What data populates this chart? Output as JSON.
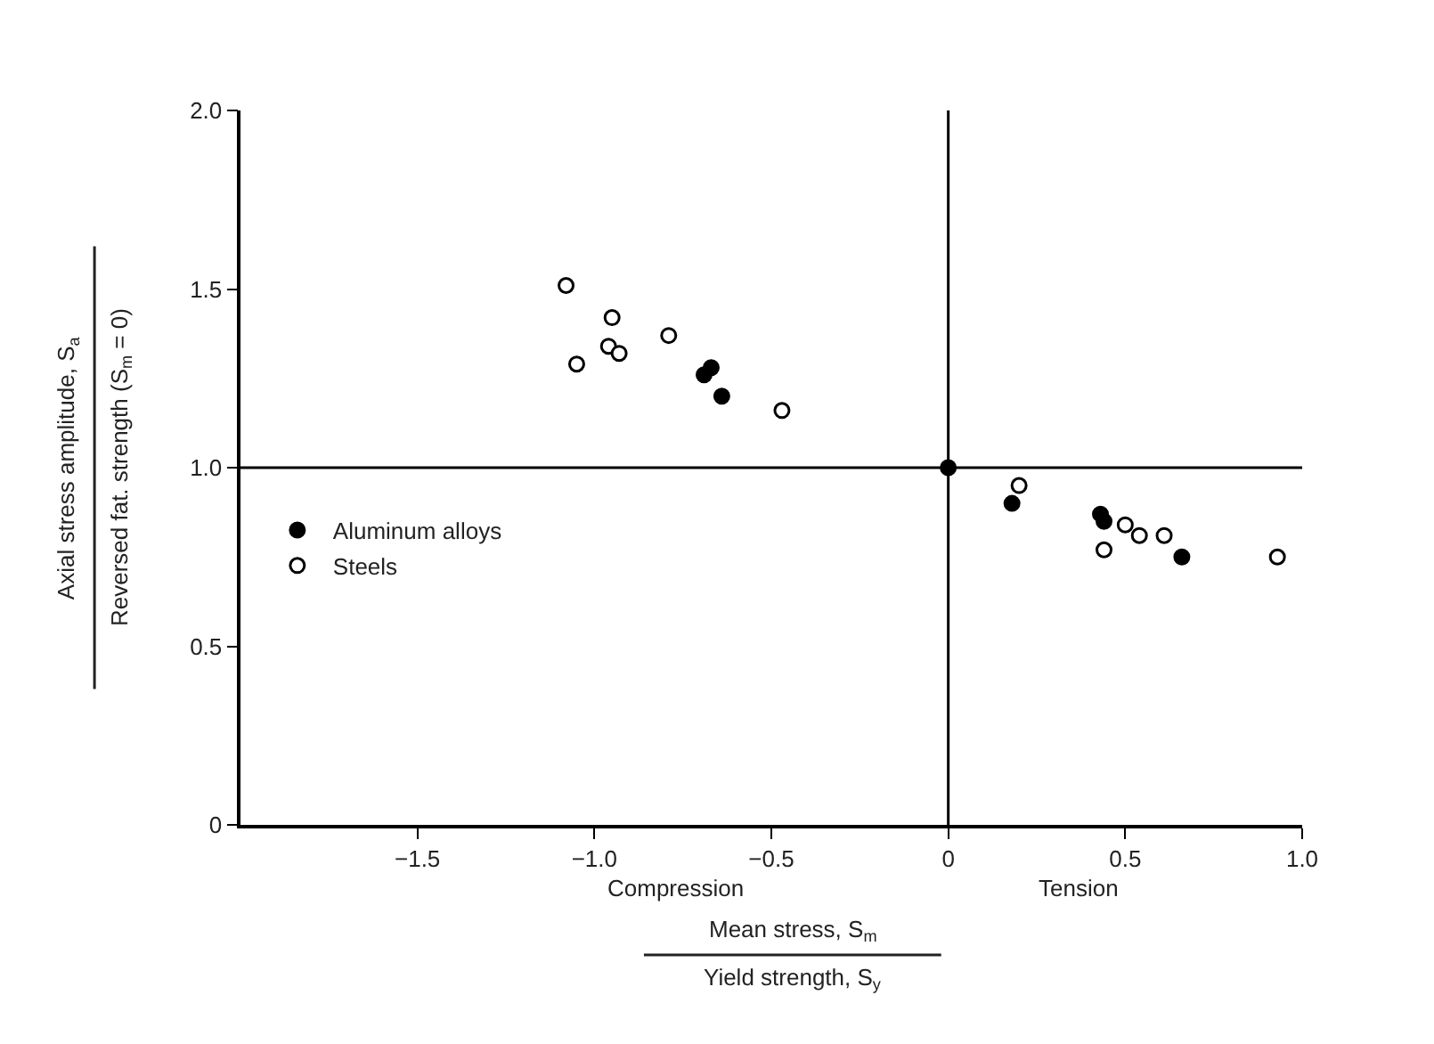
{
  "chart_data": {
    "type": "scatter",
    "xlabel": "Mean stress, S$_{m}$\nYield strength, S$_{y}$",
    "ylabel": "Axial stress amplitude, S$_{a}$\nReversed fat. strength (S$_{m}$ = 0)",
    "annotations": [
      "Compression",
      "Tension"
    ],
    "series": [
      {
        "name": "Aluminum alloys",
        "color": "#000000",
        "x": [
          -0.69,
          -0.67,
          -0.64,
          0.0,
          0.18,
          0.43,
          0.44,
          0.66
        ],
        "values": [
          1.26,
          1.28,
          1.2,
          1.0,
          0.9,
          0.87,
          0.85,
          0.75
        ]
      },
      {
        "name": "Steels",
        "color": "#ffffff",
        "x": [
          -1.08,
          -0.95,
          -0.96,
          -0.93,
          -1.05,
          -0.79,
          -0.47,
          0.2,
          0.5,
          0.54,
          0.61,
          0.44,
          0.93
        ],
        "values": [
          1.51,
          1.42,
          1.34,
          1.32,
          1.29,
          1.37,
          1.16,
          0.95,
          0.84,
          0.81,
          0.81,
          0.77,
          0.75
        ]
      }
    ],
    "xlim": [
      -2.0,
      1.0
    ],
    "xticks": [
      {
        "value": -1.5,
        "label": "−1.5"
      },
      {
        "value": -1.0,
        "label": "−1.0"
      },
      {
        "value": -0.5,
        "label": "−0.5"
      },
      0,
      {
        "value": 0.5,
        "label": "0.5"
      },
      {
        "value": 1.0,
        "label": "1.0"
      }
    ],
    "ylim": [
      0,
      2.0
    ],
    "yticks": [
      0,
      {
        "value": 0.5,
        "label": "0.5"
      },
      {
        "value": 1.0,
        "label": "1.0"
      },
      {
        "value": 1.5,
        "label": "1.5"
      },
      {
        "value": 2.0,
        "label": "2.0"
      }
    ],
    "ref_lines": [
      {
        "axis": "y",
        "value": 1.0,
        "color": "#000000"
      },
      {
        "axis": "x",
        "value": 0,
        "color": "#000000"
      }
    ],
    "legend": "left",
    "marker": "circle"
  }
}
